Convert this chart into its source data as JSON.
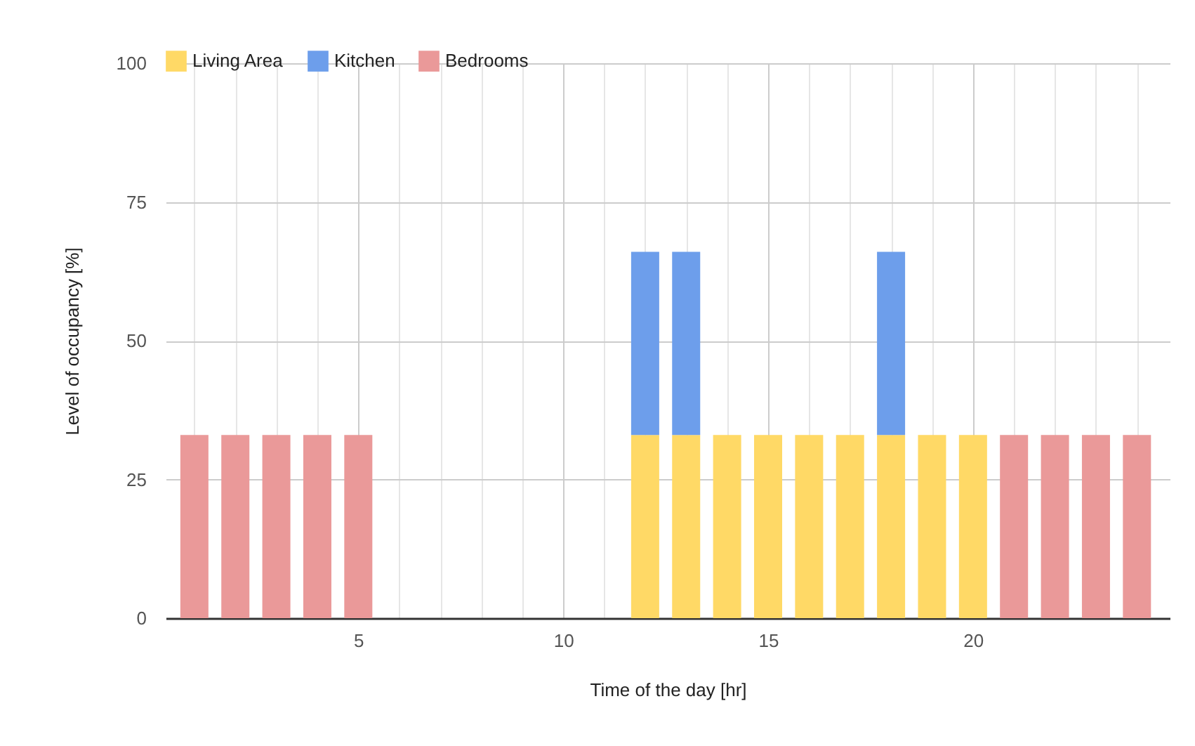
{
  "chart_data": {
    "type": "bar",
    "stacked": true,
    "xlabel": "Time of the day [hr]",
    "ylabel": "Level of occupancy [%]",
    "x": [
      1,
      2,
      3,
      4,
      5,
      12,
      13,
      14,
      15,
      16,
      17,
      18,
      19,
      20,
      21,
      22,
      23,
      24
    ],
    "series": [
      {
        "name": "Living Area",
        "color": "#ffd966",
        "values": [
          null,
          null,
          null,
          null,
          null,
          33,
          33,
          33,
          33,
          33,
          33,
          33,
          33,
          33,
          null,
          null,
          null,
          null
        ]
      },
      {
        "name": "Kitchen",
        "color": "#6d9eeb",
        "values": [
          null,
          null,
          null,
          null,
          null,
          33,
          33,
          null,
          null,
          null,
          null,
          33,
          null,
          null,
          null,
          null,
          null,
          null
        ]
      },
      {
        "name": "Bedrooms",
        "color": "#ea9999",
        "values": [
          33,
          33,
          33,
          33,
          33,
          null,
          null,
          null,
          null,
          null,
          null,
          null,
          null,
          null,
          33,
          33,
          33,
          33
        ]
      }
    ],
    "xlim": [
      0.3,
      24.8
    ],
    "xticks": [
      {
        "value": 1,
        "label": null
      },
      {
        "value": 2,
        "label": null
      },
      {
        "value": 3,
        "label": null
      },
      {
        "value": 4,
        "label": null
      },
      5,
      {
        "value": 6,
        "label": null
      },
      {
        "value": 7,
        "label": null
      },
      {
        "value": 8,
        "label": null
      },
      {
        "value": 9,
        "label": null
      },
      10,
      {
        "value": 11,
        "label": null
      },
      {
        "value": 12,
        "label": null
      },
      {
        "value": 13,
        "label": null
      },
      {
        "value": 14,
        "label": null
      },
      15,
      {
        "value": 16,
        "label": null
      },
      {
        "value": 17,
        "label": null
      },
      {
        "value": 18,
        "label": null
      },
      {
        "value": 19,
        "label": null
      },
      20,
      {
        "value": 21,
        "label": null
      },
      {
        "value": 22,
        "label": null
      },
      {
        "value": 23,
        "label": null
      },
      {
        "value": 24,
        "label": null
      }
    ],
    "ylim": [
      0,
      100
    ],
    "yticks": [
      0,
      25,
      50,
      75,
      100
    ],
    "grid": true,
    "legend": "top"
  }
}
